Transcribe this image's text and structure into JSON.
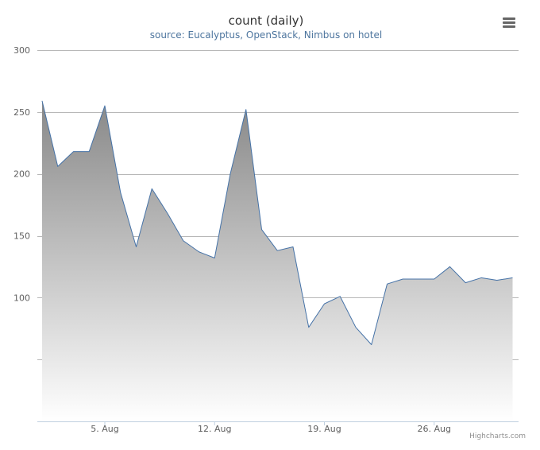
{
  "chart_data": {
    "type": "area",
    "title": "count (daily)",
    "subtitle": "source: Eucalyptus, OpenStack, Nimbus on hotel",
    "x_start": "2014-08-01",
    "x_tick_labels": [
      "5. Aug",
      "12. Aug",
      "19. Aug",
      "26. Aug"
    ],
    "x_tick_dates": [
      "2014-08-05",
      "2014-08-12",
      "2014-08-19",
      "2014-08-26"
    ],
    "ylim": [
      0,
      300
    ],
    "y_ticks": [
      50,
      100,
      150,
      200,
      250,
      300
    ],
    "y_tick_labels": [
      "",
      "100",
      "150",
      "200",
      "250",
      "300"
    ],
    "series": [
      {
        "color": "#4572a7",
        "x": [
          "2014-08-01",
          "2014-08-02",
          "2014-08-03",
          "2014-08-04",
          "2014-08-05",
          "2014-08-06",
          "2014-08-07",
          "2014-08-08",
          "2014-08-09",
          "2014-08-10",
          "2014-08-11",
          "2014-08-12",
          "2014-08-13",
          "2014-08-14",
          "2014-08-15",
          "2014-08-16",
          "2014-08-17",
          "2014-08-18",
          "2014-08-19",
          "2014-08-20",
          "2014-08-21",
          "2014-08-22",
          "2014-08-23",
          "2014-08-24",
          "2014-08-25",
          "2014-08-26",
          "2014-08-27",
          "2014-08-28",
          "2014-08-29",
          "2014-08-30",
          "2014-08-31"
        ],
        "values": [
          259,
          206,
          218,
          218,
          255,
          185,
          141,
          188,
          168,
          146,
          137,
          132,
          200,
          252,
          155,
          138,
          141,
          76,
          95,
          101,
          76,
          62,
          111,
          115,
          115,
          115,
          125,
          112,
          116,
          114,
          116
        ]
      }
    ],
    "grid": true,
    "area_fill_top": "#888888",
    "area_fill_bottom": "#ffffff"
  },
  "ui": {
    "menu_icon": "hamburger-icon",
    "credits": "Highcharts.com"
  }
}
